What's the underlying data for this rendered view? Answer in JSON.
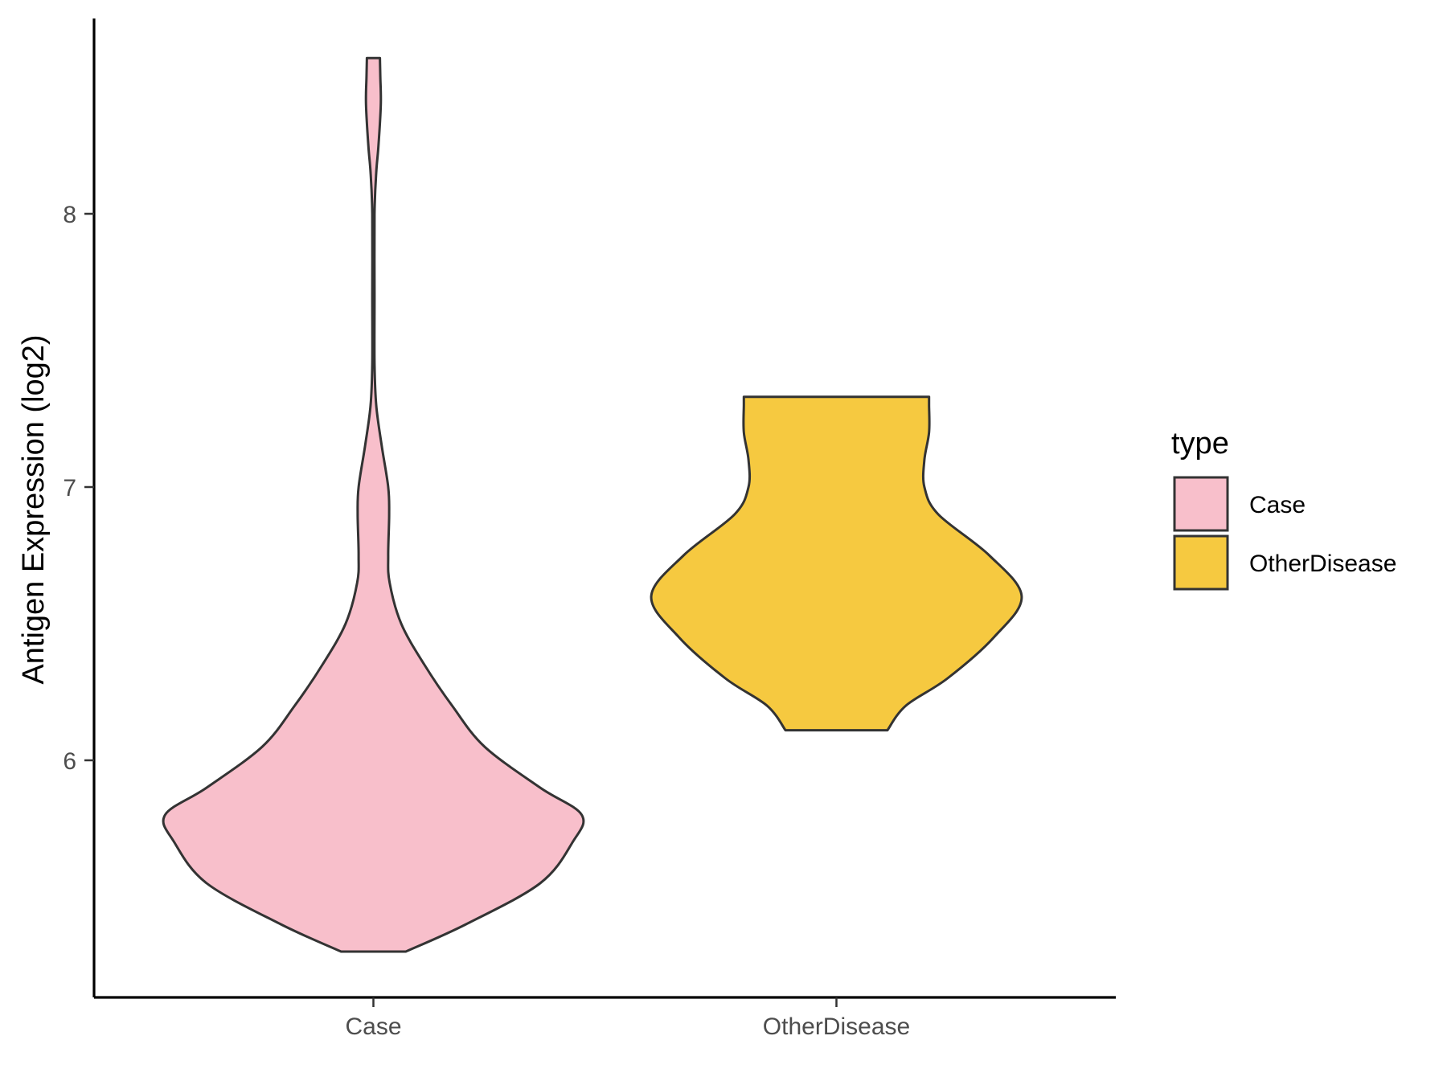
{
  "chart_data": {
    "type": "violin",
    "title": "",
    "xlabel": "",
    "ylabel": "Antigen Expression (log2)",
    "ylim": [
      5.17,
      8.72
    ],
    "yticks": [
      6,
      7,
      8
    ],
    "grid": false,
    "categories": [
      "Case",
      "OtherDisease"
    ],
    "legend": {
      "title": "type",
      "placement": "right",
      "entries": [
        "Case",
        "OtherDisease"
      ]
    },
    "series": [
      {
        "name": "Case",
        "color": "#F8BFCB",
        "min": 5.3,
        "max": 8.57,
        "density": [
          [
            5.3,
            0.07
          ],
          [
            5.4,
            0.2
          ],
          [
            5.55,
            0.36
          ],
          [
            5.7,
            0.43
          ],
          [
            5.8,
            0.45
          ],
          [
            5.9,
            0.36
          ],
          [
            6.05,
            0.24
          ],
          [
            6.2,
            0.17
          ],
          [
            6.35,
            0.11
          ],
          [
            6.5,
            0.06
          ],
          [
            6.65,
            0.035
          ],
          [
            6.75,
            0.032
          ],
          [
            6.9,
            0.034
          ],
          [
            7.0,
            0.032
          ],
          [
            7.15,
            0.018
          ],
          [
            7.3,
            0.006
          ],
          [
            7.45,
            0.0025
          ],
          [
            7.7,
            0.0025
          ],
          [
            8.0,
            0.0025
          ],
          [
            8.15,
            0.006
          ],
          [
            8.25,
            0.011
          ],
          [
            8.4,
            0.016
          ],
          [
            8.5,
            0.015
          ],
          [
            8.57,
            0.014
          ]
        ]
      },
      {
        "name": "OtherDisease",
        "color": "#F6C940",
        "min": 6.11,
        "max": 7.33,
        "density": [
          [
            6.11,
            0.11
          ],
          [
            6.2,
            0.15
          ],
          [
            6.3,
            0.24
          ],
          [
            6.45,
            0.34
          ],
          [
            6.6,
            0.4
          ],
          [
            6.75,
            0.33
          ],
          [
            6.9,
            0.22
          ],
          [
            7.0,
            0.19
          ],
          [
            7.1,
            0.19
          ],
          [
            7.2,
            0.2
          ],
          [
            7.3,
            0.2
          ],
          [
            7.33,
            0.2
          ]
        ]
      }
    ]
  }
}
